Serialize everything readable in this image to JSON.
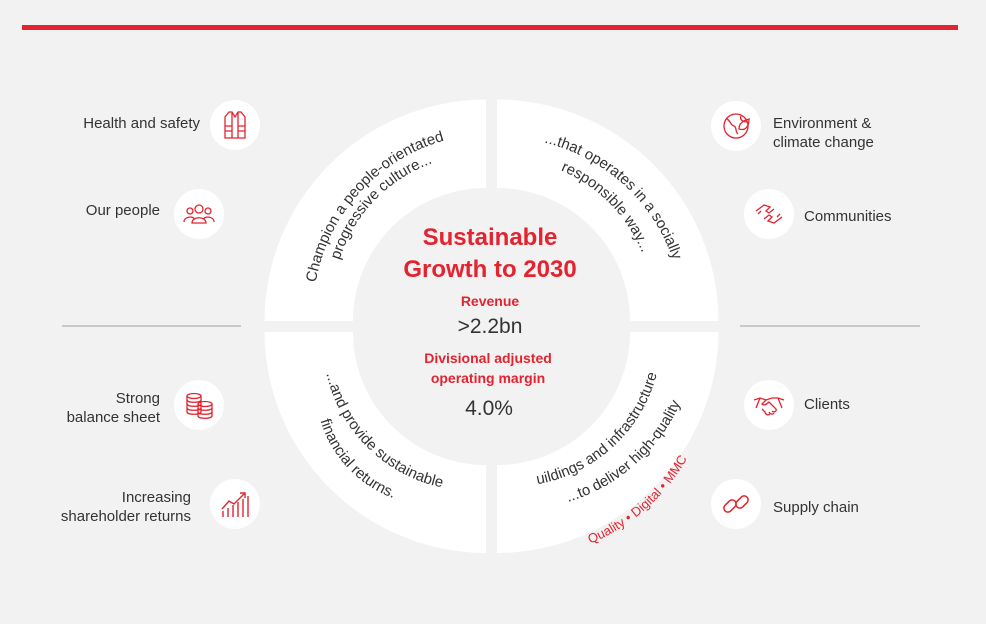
{
  "colors": {
    "accent": "#e3232f",
    "text": "#333333",
    "divider": "#c9c9c9",
    "quadrant": "#ffffff",
    "background": "#f2f2f2"
  },
  "center": {
    "title_line1": "Sustainable",
    "title_line2": "Growth to 2030",
    "revenue_label": "Revenue",
    "revenue_value": ">2.2bn",
    "margin_label_line1": "Divisional adjusted",
    "margin_label_line2": "operating margin",
    "margin_value": "4.0%"
  },
  "quadrants": {
    "top_left_line1": "Champion a people-orientated",
    "top_left_line2": "progressive culture...",
    "top_right_line1": "...that operates in a socially",
    "top_right_line2": "responsible way...",
    "bottom_left_line1": "...and provide sustainable",
    "bottom_left_line2": "financial returns.",
    "bottom_right_line1": "...to deliver high-quality",
    "bottom_right_line2": "buildings and infrastructure...",
    "tagline_1": "Quality",
    "tagline_sep": "•",
    "tagline_2": "Digital",
    "tagline_3": "MMC"
  },
  "left_items": [
    {
      "label": "Health and safety",
      "icon": "safety-vest-icon"
    },
    {
      "label": "Our people",
      "icon": "people-group-icon"
    },
    {
      "label_line1": "Strong",
      "label_line2": "balance sheet",
      "icon": "coin-stack-icon"
    },
    {
      "label_line1": "Increasing",
      "label_line2": "shareholder returns",
      "icon": "growth-chart-icon"
    }
  ],
  "right_items": [
    {
      "label_line1": "Environment &",
      "label_line2": "climate change",
      "icon": "globe-leaf-icon"
    },
    {
      "label": "Communities",
      "icon": "linked-hands-icon"
    },
    {
      "label": "Clients",
      "icon": "handshake-icon"
    },
    {
      "label": "Supply chain",
      "icon": "chain-link-icon"
    }
  ]
}
